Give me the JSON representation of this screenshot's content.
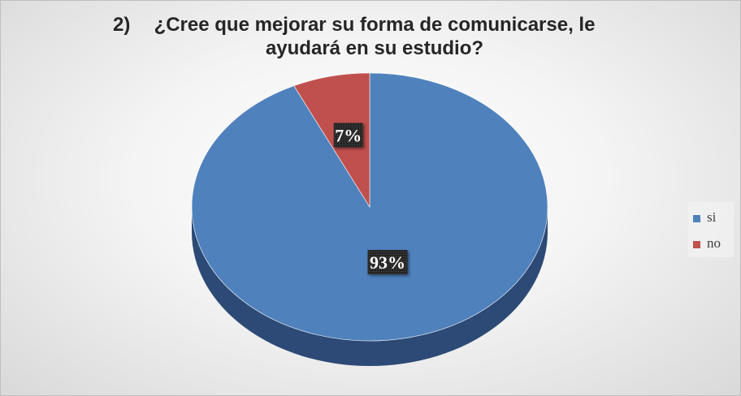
{
  "chart_data": {
    "type": "pie",
    "title_number": "2)",
    "title_line1": "¿Cree que mejorar su forma de comunicarse, le",
    "title_line2": "ayudará en su estudio?",
    "categories": [
      "si",
      "no"
    ],
    "values": [
      93,
      7
    ],
    "data_labels": [
      "93%",
      "7%"
    ],
    "colors": [
      "#4F81BD",
      "#C0504D"
    ],
    "legend_position": "right",
    "style": "3d"
  }
}
